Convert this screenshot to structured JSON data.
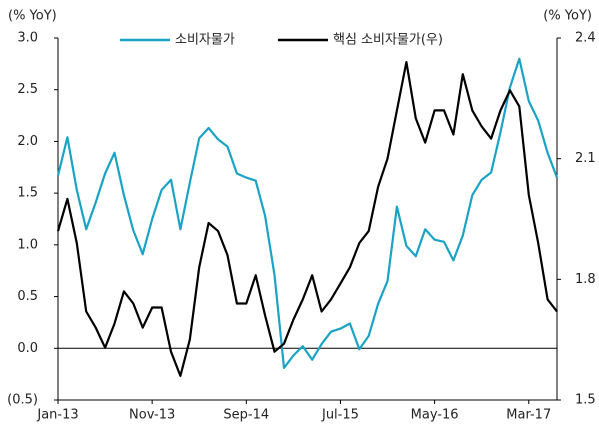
{
  "chart_data": {
    "type": "line",
    "y_label": "(% YoY)",
    "y2_label": "(% YoY)",
    "categories": [
      "Jan-13",
      null,
      null,
      null,
      null,
      null,
      null,
      null,
      null,
      null,
      "Nov-13",
      null,
      null,
      null,
      null,
      null,
      null,
      null,
      null,
      null,
      "Sep-14",
      null,
      null,
      null,
      null,
      null,
      null,
      null,
      null,
      null,
      "Jul-15",
      null,
      null,
      null,
      null,
      null,
      null,
      null,
      null,
      null,
      "May-16",
      null,
      null,
      null,
      null,
      null,
      null,
      null,
      null,
      null,
      "Mar-17",
      null,
      null,
      null
    ],
    "series": [
      {
        "name": "소비자물가",
        "color": "#1aa3c4",
        "values": [
          1.67,
          2.04,
          1.53,
          1.15,
          1.41,
          1.69,
          1.89,
          1.48,
          1.14,
          0.91,
          1.25,
          1.53,
          1.63,
          1.15,
          1.6,
          2.03,
          2.13,
          2.02,
          1.95,
          1.69,
          1.65,
          1.62,
          1.28,
          0.71,
          -0.19,
          -0.07,
          0.02,
          -0.11,
          0.04,
          0.16,
          0.19,
          0.24,
          -0.01,
          0.12,
          0.43,
          0.65,
          1.37,
          0.99,
          0.89,
          1.15,
          1.05,
          1.03,
          0.85,
          1.09,
          1.48,
          1.63,
          1.7,
          2.09,
          2.52,
          2.8,
          2.39,
          2.2,
          1.89,
          1.65
        ]
      },
      {
        "name": "핵심 소비자물가(우)",
        "color": "#000000",
        "axis": "y2",
        "values": [
          1.92,
          2.0,
          1.89,
          1.72,
          1.68,
          1.63,
          1.69,
          1.77,
          1.74,
          1.68,
          1.73,
          1.73,
          1.62,
          1.56,
          1.65,
          1.83,
          1.94,
          1.92,
          1.86,
          1.74,
          1.74,
          1.81,
          1.71,
          1.62,
          1.64,
          1.7,
          1.75,
          1.81,
          1.72,
          1.75,
          1.79,
          1.83,
          1.89,
          1.92,
          2.03,
          2.1,
          2.22,
          2.34,
          2.2,
          2.14,
          2.22,
          2.22,
          2.16,
          2.31,
          2.22,
          2.18,
          2.15,
          2.22,
          2.27,
          2.23,
          2.01,
          1.89,
          1.75,
          1.72
        ]
      }
    ],
    "ylim": [
      -0.5,
      3.0
    ],
    "yticks": [
      {
        "value": 3,
        "label": "3.0"
      },
      2.5,
      {
        "value": 2,
        "label": "2.0"
      },
      1.5,
      {
        "value": 1,
        "label": "1.0"
      },
      0.5,
      {
        "value": 0,
        "label": "0.0"
      },
      {
        "value": -0.5,
        "label": "(0.5)"
      }
    ],
    "y2lim": [
      1.5,
      2.4
    ],
    "y2ticks": [
      2.4,
      2.1,
      1.8,
      1.5
    ],
    "legend": "top"
  }
}
